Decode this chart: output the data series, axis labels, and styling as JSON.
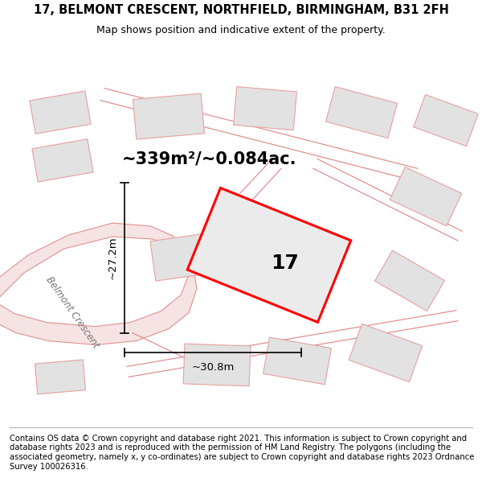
{
  "title": "17, BELMONT CRESCENT, NORTHFIELD, BIRMINGHAM, B31 2FH",
  "subtitle": "Map shows position and indicative extent of the property.",
  "area_text": "~339m²/~0.084ac.",
  "number_label": "17",
  "dim_vertical": "~27.2m",
  "dim_horizontal": "~30.8m",
  "road_label": "Belmont Crescent",
  "footer": "Contains OS data © Crown copyright and database right 2021. This information is subject to Crown copyright and database rights 2023 and is reproduced with the permission of HM Land Registry. The polygons (including the associated geometry, namely x, y co-ordinates) are subject to Crown copyright and database rights 2023 Ordnance Survey 100026316.",
  "bg_color": "#f7f7f7",
  "plot_fill": "#ebebeb",
  "plot_edge": "#ff0000",
  "neighbor_fill": "#e2e2e2",
  "neighbor_edge": "#e8a0a0",
  "road_fill": "#f5e0e0",
  "title_fontsize": 10.5,
  "subtitle_fontsize": 9,
  "footer_fontsize": 7.2,
  "label_fontsize": 18,
  "area_fontsize": 15,
  "dim_fontsize": 9.5,
  "road_fontsize": 8.5
}
